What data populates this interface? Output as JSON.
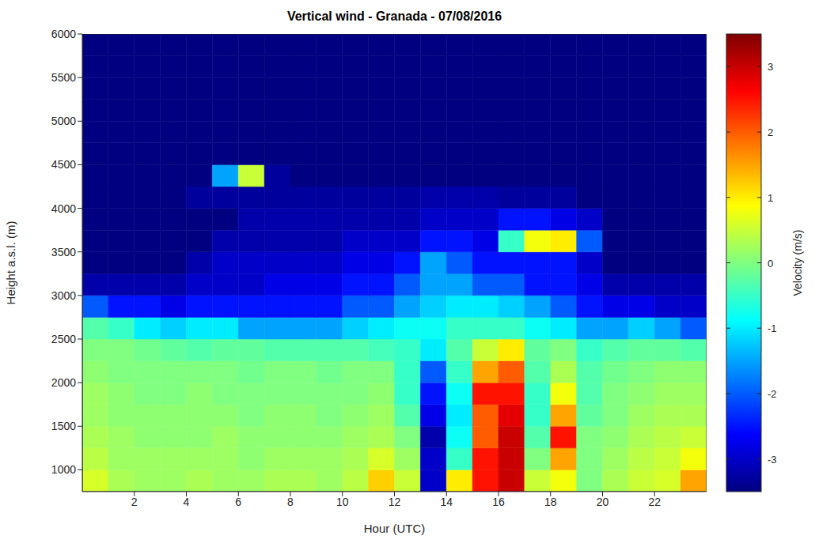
{
  "chart_data": {
    "type": "heatmap",
    "title": "Vertical wind - Granada - 07/08/2016",
    "xlabel": "Hour (UTC)",
    "ylabel": "Height a.s.l. (m)",
    "xlim": [
      0,
      24
    ],
    "xticks": [
      2,
      4,
      6,
      8,
      10,
      12,
      14,
      16,
      18,
      20,
      22
    ],
    "ylim": [
      750,
      6000
    ],
    "yticks": [
      1000,
      1500,
      2000,
      2500,
      3000,
      3500,
      4000,
      4500,
      5000,
      5500,
      6000
    ],
    "grid": false,
    "x_edges": [
      0,
      1,
      2,
      3,
      4,
      5,
      6,
      7,
      8,
      9,
      10,
      11,
      12,
      13,
      14,
      15,
      16,
      17,
      18,
      19,
      20,
      21,
      22,
      23,
      24
    ],
    "y_edges": [
      750,
      1000,
      1250,
      1500,
      1750,
      2000,
      2250,
      2500,
      2750,
      3000,
      3250,
      3500,
      3750,
      4000,
      4250,
      4500,
      4750,
      5000,
      5250,
      5500,
      5750,
      6000
    ],
    "z": [
      [
        0.6,
        0.3,
        0.2,
        0.2,
        0.3,
        0.2,
        0.2,
        0.3,
        0.3,
        0.2,
        0.4,
        1.2,
        0.5,
        -3,
        1,
        2.5,
        3,
        0.5,
        0.8,
        0,
        0.3,
        0.5,
        0.6,
        1.5
      ],
      [
        0.4,
        0.2,
        0.2,
        0.2,
        0.2,
        0.2,
        0.1,
        0.2,
        0.2,
        0.2,
        0.3,
        0.6,
        0.2,
        -3,
        -0.5,
        2.5,
        3,
        0,
        1.5,
        0,
        0.2,
        0.4,
        0.5,
        0.8
      ],
      [
        0.3,
        0.2,
        0.1,
        0.1,
        0.1,
        0.2,
        0.1,
        0.1,
        0.1,
        0.1,
        0.2,
        0.3,
        0,
        -3.2,
        -0.8,
        2,
        3,
        -0.3,
        2.5,
        0,
        0.1,
        0.3,
        0.4,
        0.5
      ],
      [
        0.2,
        0.1,
        0.1,
        0.1,
        0.1,
        0.1,
        0,
        0.1,
        0.1,
        0,
        0.1,
        0.2,
        -0.3,
        -2.8,
        -1,
        2,
        2.8,
        -0.5,
        1.5,
        -0.2,
        0,
        0.2,
        0.3,
        0.3
      ],
      [
        0.2,
        0.1,
        0,
        0,
        0.1,
        0,
        0,
        0,
        0,
        0,
        0,
        0.1,
        -0.5,
        -2.5,
        -0.8,
        2.5,
        2.5,
        -0.5,
        0.8,
        -0.3,
        0,
        0.1,
        0.2,
        0.2
      ],
      [
        0.1,
        0,
        0,
        0,
        0,
        0,
        -0.1,
        0,
        0,
        -0.1,
        0,
        0,
        -0.5,
        -2,
        -0.5,
        1.5,
        2,
        -0.3,
        0.3,
        -0.3,
        -0.1,
        0,
        0.1,
        0.1
      ],
      [
        0,
        0,
        -0.1,
        -0.2,
        -0.3,
        -0.2,
        -0.2,
        -0.3,
        -0.3,
        -0.3,
        -0.3,
        -0.4,
        -0.5,
        -1,
        -0.3,
        0.5,
        1,
        -0.2,
        0,
        -0.5,
        -0.3,
        -0.2,
        -0.2,
        -0.3
      ],
      [
        -0.3,
        -0.5,
        -1,
        -1.2,
        -1,
        -1,
        -1.5,
        -1.5,
        -1.5,
        -1.5,
        -1.2,
        -1,
        -0.8,
        -0.8,
        -0.5,
        -0.5,
        -0.5,
        -0.8,
        -1,
        -1.5,
        -1.5,
        -1.2,
        -1.5,
        -2
      ],
      [
        -2,
        -2.5,
        -2.5,
        -2.8,
        -2.5,
        -2.5,
        -2.5,
        -2.5,
        -2.5,
        -2.5,
        -2,
        -2,
        -1.5,
        -1.2,
        -1,
        -1,
        -1.2,
        -1.5,
        -2,
        -2.5,
        -2.8,
        -2.8,
        -3,
        -3
      ],
      [
        -3.2,
        -3.2,
        -3.2,
        -3.2,
        -3,
        -3,
        -3,
        -2.8,
        -2.8,
        -2.8,
        -2.5,
        -2.5,
        -2,
        -1.5,
        -1.5,
        -2,
        -2,
        -2.5,
        -2.5,
        -2.8,
        -3.2,
        -3.2,
        -3.2,
        -3.2
      ],
      [
        -3.5,
        -3.5,
        -3.5,
        -3.5,
        -3.2,
        -3,
        -3,
        -3,
        -3,
        -3,
        -2.8,
        -2.8,
        -2.5,
        -1.5,
        -2,
        -2.5,
        -2.5,
        -2.5,
        -2.5,
        -3,
        -3.5,
        -3.5,
        -3.5,
        -3.5
      ],
      [
        -3.5,
        -3.5,
        -3.5,
        -3.5,
        -3.5,
        -3.2,
        -3.2,
        -3.2,
        -3.2,
        -3.2,
        -3,
        -3,
        -3,
        -2.5,
        -2.5,
        -2.8,
        -0.5,
        0.8,
        1,
        -2,
        -3.5,
        -3.5,
        -3.5,
        -3.5
      ],
      [
        -3.5,
        -3.5,
        -3.5,
        -3.5,
        -3.5,
        -3.5,
        -3.2,
        -3.2,
        -3.2,
        -3.2,
        -3.2,
        -3.2,
        -3.2,
        -3,
        -3,
        -3,
        -2.5,
        -2.5,
        -2.8,
        -3,
        -3.5,
        -3.5,
        -3.5,
        -3.5
      ],
      [
        -3.5,
        -3.5,
        -3.5,
        -3.5,
        -3.3,
        -3.3,
        -3.3,
        -3.3,
        -3.3,
        -3.3,
        -3.3,
        -3.3,
        -3.3,
        -3.2,
        -3.2,
        -3.2,
        -3.3,
        -3.3,
        -3.3,
        -3.5,
        -3.5,
        -3.5,
        -3.5,
        -3.5
      ],
      [
        -3.5,
        -3.5,
        -3.5,
        -3.5,
        -3.5,
        -1.5,
        0.5,
        -3.3,
        -3.5,
        -3.5,
        -3.5,
        -3.5,
        -3.5,
        -3.5,
        -3.5,
        -3.5,
        -3.5,
        -3.5,
        -3.5,
        -3.5,
        -3.5,
        -3.5,
        -3.5,
        -3.5
      ],
      [
        -3.5,
        -3.5,
        -3.5,
        -3.5,
        -3.5,
        -3.5,
        -3.5,
        -3.5,
        -3.5,
        -3.5,
        -3.5,
        -3.5,
        -3.5,
        -3.5,
        -3.5,
        -3.5,
        -3.5,
        -3.5,
        -3.5,
        -3.5,
        -3.5,
        -3.5,
        -3.5,
        -3.5
      ],
      [
        -3.5,
        -3.5,
        -3.5,
        -3.5,
        -3.5,
        -3.5,
        -3.5,
        -3.5,
        -3.5,
        -3.5,
        -3.5,
        -3.5,
        -3.5,
        -3.5,
        -3.5,
        -3.5,
        -3.5,
        -3.5,
        -3.5,
        -3.5,
        -3.5,
        -3.5,
        -3.5,
        -3.5
      ],
      [
        -3.5,
        -3.5,
        -3.5,
        -3.5,
        -3.5,
        -3.5,
        -3.5,
        -3.5,
        -3.5,
        -3.5,
        -3.5,
        -3.5,
        -3.5,
        -3.5,
        -3.5,
        -3.5,
        -3.5,
        -3.5,
        -3.5,
        -3.5,
        -3.5,
        -3.5,
        -3.5,
        -3.5
      ],
      [
        -3.5,
        -3.5,
        -3.5,
        -3.5,
        -3.5,
        -3.5,
        -3.5,
        -3.5,
        -3.5,
        -3.5,
        -3.5,
        -3.5,
        -3.5,
        -3.5,
        -3.5,
        -3.5,
        -3.5,
        -3.5,
        -3.5,
        -3.5,
        -3.5,
        -3.5,
        -3.5,
        -3.5
      ],
      [
        -3.5,
        -3.5,
        -3.5,
        -3.5,
        -3.5,
        -3.5,
        -3.5,
        -3.5,
        -3.5,
        -3.5,
        -3.5,
        -3.5,
        -3.5,
        -3.5,
        -3.5,
        -3.5,
        -3.5,
        -3.5,
        -3.5,
        -3.5,
        -3.5,
        -3.5,
        -3.5,
        -3.5
      ],
      [
        -3.5,
        -3.5,
        -3.5,
        -3.5,
        -3.5,
        -3.5,
        -3.5,
        -3.5,
        -3.5,
        -3.5,
        -3.5,
        -3.5,
        -3.5,
        -3.5,
        -3.5,
        -3.5,
        -3.5,
        -3.5,
        -3.5,
        -3.5,
        -3.5,
        -3.5,
        -3.5,
        -3.5
      ]
    ],
    "clim": [
      -3.5,
      3.5
    ],
    "cticks": [
      -3,
      -2,
      -1,
      0,
      1,
      2,
      3
    ],
    "colorbar_label": "Velocity (m/s)"
  }
}
